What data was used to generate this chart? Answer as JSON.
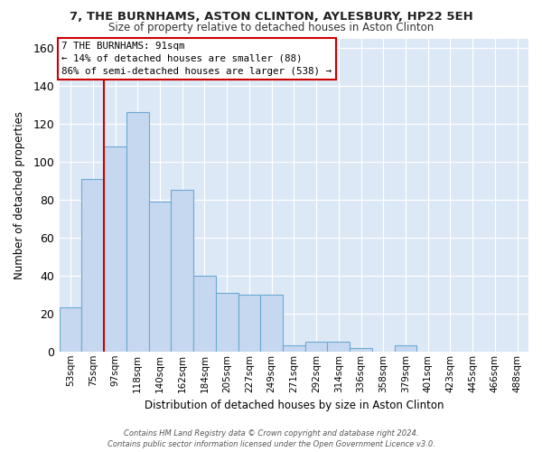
{
  "title_line1": "7, THE BURNHAMS, ASTON CLINTON, AYLESBURY, HP22 5EH",
  "title_line2": "Size of property relative to detached houses in Aston Clinton",
  "xlabel": "Distribution of detached houses by size in Aston Clinton",
  "ylabel": "Number of detached properties",
  "bar_labels": [
    "53sqm",
    "75sqm",
    "97sqm",
    "118sqm",
    "140sqm",
    "162sqm",
    "184sqm",
    "205sqm",
    "227sqm",
    "249sqm",
    "271sqm",
    "292sqm",
    "314sqm",
    "336sqm",
    "358sqm",
    "379sqm",
    "401sqm",
    "423sqm",
    "445sqm",
    "466sqm",
    "488sqm"
  ],
  "bar_values": [
    23,
    91,
    108,
    126,
    79,
    85,
    40,
    31,
    30,
    30,
    3,
    5,
    5,
    2,
    0,
    3,
    0,
    0,
    0,
    0,
    0
  ],
  "bar_color": "#c5d8ef",
  "bar_edge_color": "#6aaad4",
  "redline_index": 1,
  "highlight_color": "#cc0000",
  "annotation_line1": "7 THE BURNHAMS: 91sqm",
  "annotation_line2": "← 14% of detached houses are smaller (88)",
  "annotation_line3": "86% of semi-detached houses are larger (538) →",
  "annotation_box_color": "#ffffff",
  "annotation_box_edge": "#cc0000",
  "ylim_max": 165,
  "yticks": [
    0,
    20,
    40,
    60,
    80,
    100,
    120,
    140,
    160
  ],
  "plot_bg": "#dce8f5",
  "grid_color": "#ffffff",
  "fig_bg": "#ffffff",
  "footer_line1": "Contains HM Land Registry data © Crown copyright and database right 2024.",
  "footer_line2": "Contains public sector information licensed under the Open Government Licence v3.0."
}
